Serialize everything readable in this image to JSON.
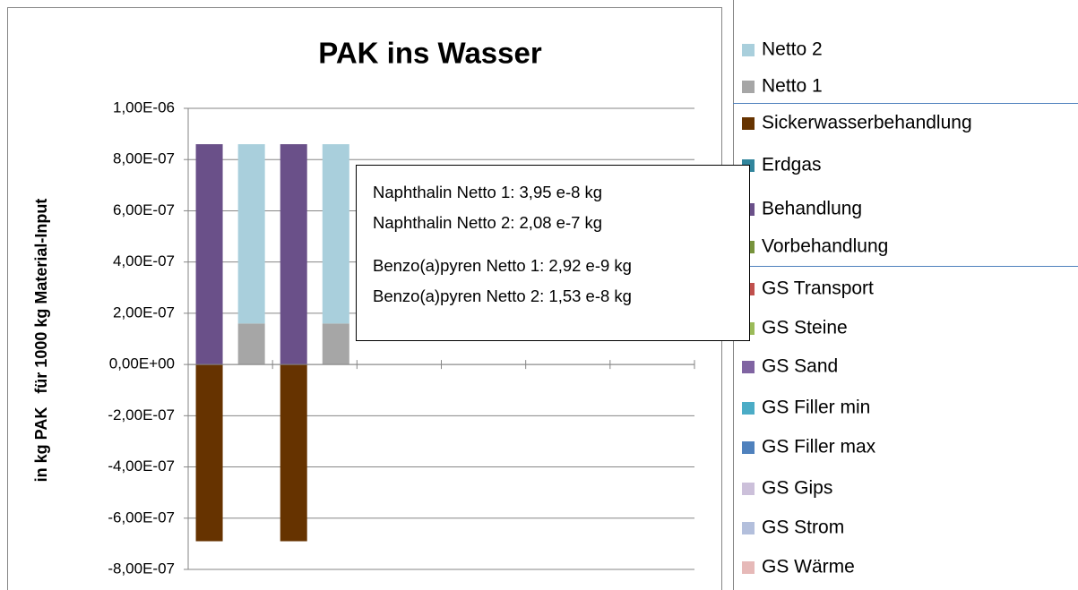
{
  "chart_data": {
    "type": "bar",
    "stacked": true,
    "title": "PAK ins Wasser",
    "y_label": "in kg PAK   für 1000 kg Material-Input",
    "categories": [
      null,
      null,
      null,
      null,
      null,
      null,
      null,
      null,
      null,
      null,
      null,
      null
    ],
    "ylim": [
      -8e-07,
      1e-06
    ],
    "yticks": [
      {
        "value": 1e-06,
        "label": "1,00E-06"
      },
      {
        "value": 8e-07,
        "label": "8,00E-07"
      },
      {
        "value": 6e-07,
        "label": "6,00E-07"
      },
      {
        "value": 4e-07,
        "label": "4,00E-07"
      },
      {
        "value": 2e-07,
        "label": "2,00E-07"
      },
      {
        "value": 0,
        "label": "0,00E+00"
      },
      {
        "value": -2e-07,
        "label": "-2,00E-07"
      },
      {
        "value": -4e-07,
        "label": "-4,00E-07"
      },
      {
        "value": -6e-07,
        "label": "-6,00E-07"
      },
      {
        "value": -8e-07,
        "label": "-8,00E-07"
      }
    ],
    "grid": true,
    "series": [
      {
        "name": "Netto 2",
        "color": "#a9cfdc",
        "values": [
          null,
          7e-07,
          null,
          7e-07,
          null,
          null,
          null,
          null,
          null,
          null,
          null,
          null
        ]
      },
      {
        "name": "Netto 1",
        "color": "#a6a6a6",
        "values": [
          null,
          1.6e-07,
          null,
          1.6e-07,
          null,
          null,
          null,
          null,
          null,
          null,
          null,
          null
        ]
      },
      {
        "name": "Sickerwasserbehandlung",
        "color": "#663300",
        "values": [
          -6.9e-07,
          null,
          -6.9e-07,
          null,
          null,
          null,
          null,
          null,
          null,
          null,
          null,
          null
        ]
      },
      {
        "name": "Erdgas",
        "color": "#31859c",
        "values": [
          null,
          null,
          null,
          null,
          null,
          null,
          null,
          null,
          null,
          null,
          null,
          null
        ]
      },
      {
        "name": "Behandlung",
        "color": "#6a5089",
        "values": [
          8.6e-07,
          null,
          8.6e-07,
          null,
          null,
          null,
          null,
          null,
          null,
          null,
          null,
          null
        ]
      },
      {
        "name": "Vorbehandlung",
        "color": "#77933c",
        "values": [
          null,
          null,
          null,
          null,
          null,
          null,
          null,
          null,
          null,
          null,
          null,
          null
        ]
      },
      {
        "name": "GS Transport",
        "color": "#c0504d",
        "values": [
          null,
          null,
          null,
          null,
          null,
          null,
          null,
          null,
          null,
          null,
          null,
          null
        ]
      },
      {
        "name": "GS Steine",
        "color": "#9bbb59",
        "values": [
          null,
          null,
          null,
          null,
          null,
          null,
          null,
          null,
          null,
          null,
          null,
          null
        ]
      },
      {
        "name": "GS Sand",
        "color": "#8064a2",
        "values": [
          null,
          null,
          null,
          null,
          null,
          null,
          null,
          null,
          null,
          null,
          null,
          null
        ]
      },
      {
        "name": "GS Filler min",
        "color": "#4bacc6",
        "values": [
          null,
          null,
          null,
          null,
          null,
          null,
          null,
          null,
          null,
          null,
          null,
          null
        ]
      },
      {
        "name": "GS Filler max",
        "color": "#4f81bd",
        "values": [
          null,
          null,
          null,
          null,
          null,
          null,
          null,
          null,
          null,
          null,
          null,
          null
        ]
      },
      {
        "name": "GS Gips",
        "color": "#ccc0da",
        "values": [
          null,
          null,
          null,
          null,
          null,
          null,
          null,
          null,
          null,
          null,
          null,
          null
        ]
      },
      {
        "name": "GS Strom",
        "color": "#b3bfdc",
        "values": [
          null,
          null,
          null,
          null,
          null,
          null,
          null,
          null,
          null,
          null,
          null,
          null
        ]
      },
      {
        "name": "GS Wärme",
        "color": "#e6b9b8",
        "values": [
          null,
          null,
          null,
          null,
          null,
          null,
          null,
          null,
          null,
          null,
          null,
          null
        ]
      }
    ],
    "annotation": [
      "Naphthalin Netto 1: 3,95 e-8 kg",
      "Naphthalin Netto 2: 2,08 e-7 kg",
      "Benzo(a)pyren Netto 1: 2,92 e-9 kg",
      "Benzo(a)pyren Netto 2: 1,53 e-8 kg"
    ]
  }
}
